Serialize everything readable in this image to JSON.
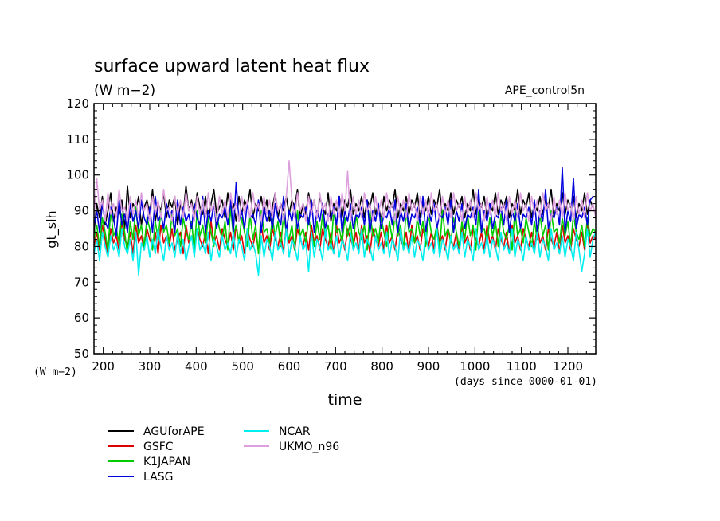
{
  "chart_data": {
    "type": "line",
    "title": "surface upward latent heat flux",
    "subtitle": "(W m−2)",
    "experiment": "APE_control5n",
    "xlabel": "time",
    "ylabel": "gt_slh",
    "y_unit_label": "(W m−2)",
    "x_unit_label": "(days since 0000-01-01)",
    "xlim": [
      180,
      1260
    ],
    "ylim": [
      50,
      120
    ],
    "x_ticks": [
      200,
      300,
      400,
      500,
      600,
      700,
      800,
      900,
      1000,
      1100,
      1200
    ],
    "y_ticks": [
      50,
      60,
      70,
      80,
      90,
      100,
      110,
      120
    ],
    "x_tick_labels": [
      "200",
      "300",
      "400",
      "500",
      "600",
      "700",
      "800",
      "900",
      "1000",
      "1100",
      "1200"
    ],
    "y_tick_labels": [
      "50",
      "60",
      "70",
      "80",
      "90",
      "100",
      "110",
      "120"
    ],
    "x_step_days": 6,
    "legend_position": "bottom-left",
    "series": [
      {
        "name": "AGUforAPE",
        "color": "#000000",
        "y": [
          84,
          92,
          88,
          94,
          86,
          90,
          95,
          87,
          91,
          89,
          93,
          85,
          97,
          88,
          92,
          90,
          94,
          86,
          91,
          93,
          89,
          96,
          87,
          92,
          90,
          95,
          88,
          93,
          91,
          94,
          86,
          92,
          89,
          97,
          90,
          93,
          88,
          95,
          91,
          89,
          94,
          87,
          92,
          96,
          89,
          91,
          93,
          88,
          95,
          90,
          92,
          87,
          94,
          89,
          93,
          91,
          96,
          88,
          92,
          90,
          94,
          89,
          93,
          87,
          91,
          95,
          88,
          92,
          90,
          94,
          89,
          93,
          91,
          96,
          88,
          92,
          89,
          95,
          90,
          93,
          88,
          94,
          91,
          89,
          95,
          87,
          92,
          90,
          94,
          88,
          93,
          91,
          96,
          89,
          92,
          90,
          94,
          88,
          93,
          91,
          95,
          89,
          92,
          87,
          94,
          90,
          93,
          91,
          96,
          88,
          92,
          90,
          94,
          89,
          93,
          91,
          95,
          88,
          92,
          90,
          94,
          89,
          93,
          91,
          96,
          88,
          92,
          90,
          95,
          89,
          93,
          91,
          94,
          88,
          92,
          90,
          96,
          89,
          93,
          91,
          94,
          88,
          92,
          90,
          95,
          89,
          93,
          91,
          94,
          88,
          92,
          90,
          96,
          89,
          93,
          91,
          95,
          88,
          92,
          90,
          94,
          89,
          93,
          91,
          96,
          88,
          92,
          90,
          95,
          89,
          93,
          91,
          94,
          88,
          92,
          90,
          95,
          89,
          93,
          91
        ]
      },
      {
        "name": "GSFC",
        "color": "#dd0000",
        "y": [
          80,
          84,
          79,
          86,
          82,
          78,
          85,
          81,
          83,
          79,
          87,
          82,
          80,
          84,
          78,
          86,
          81,
          83,
          79,
          85,
          82,
          80,
          84,
          78,
          86,
          81,
          83,
          80,
          85,
          79,
          82,
          84,
          78,
          86,
          81,
          83,
          79,
          85,
          82,
          80,
          84,
          78,
          87,
          81,
          83,
          79,
          85,
          82,
          80,
          84,
          79,
          86,
          81,
          83,
          78,
          85,
          82,
          80,
          84,
          79,
          86,
          81,
          83,
          79,
          85,
          82,
          80,
          84,
          78,
          86,
          81,
          83,
          79,
          85,
          82,
          80,
          84,
          79,
          86,
          81,
          83,
          79,
          85,
          82,
          80,
          84,
          78,
          86,
          81,
          83,
          79,
          85,
          82,
          80,
          84,
          79,
          86,
          81,
          83,
          78,
          85,
          82,
          80,
          84,
          79,
          86,
          81,
          83,
          79,
          85,
          82,
          80,
          84,
          78,
          86,
          81,
          83,
          79,
          85,
          82,
          80,
          84,
          79,
          86,
          81,
          83,
          79,
          85,
          82,
          80,
          84,
          78,
          86,
          81,
          83,
          79,
          85,
          82,
          80,
          84,
          79,
          86,
          81,
          83,
          79,
          85,
          82,
          80,
          84,
          78,
          86,
          81,
          83,
          79,
          85,
          82,
          80,
          84,
          79,
          86,
          81,
          83,
          79,
          85,
          82,
          80,
          84,
          78,
          86,
          81,
          83,
          79,
          85,
          82,
          80,
          84,
          79,
          86,
          81,
          83,
          82
        ]
      },
      {
        "name": "K1JAPAN",
        "color": "#00cc00",
        "y": [
          82,
          86,
          80,
          88,
          84,
          79,
          90,
          83,
          85,
          81,
          89,
          84,
          78,
          87,
          82,
          91,
          83,
          86,
          80,
          88,
          85,
          79,
          87,
          82,
          90,
          84,
          86,
          81,
          89,
          83,
          85,
          80,
          88,
          84,
          82,
          87,
          79,
          90,
          83,
          86,
          81,
          88,
          84,
          80,
          89,
          85,
          82,
          87,
          79,
          91,
          83,
          86,
          81,
          88,
          84,
          80,
          89,
          82,
          86,
          78,
          90,
          84,
          85,
          81,
          88,
          83,
          87,
          80,
          89,
          84,
          82,
          86,
          79,
          90,
          83,
          85,
          81,
          88,
          84,
          80,
          87,
          82,
          89,
          83,
          86,
          79,
          90,
          84,
          85,
          81,
          88,
          83,
          87,
          80,
          89,
          84,
          82,
          86,
          79,
          90,
          83,
          85,
          81,
          88,
          84,
          80,
          87,
          82,
          89,
          83,
          86,
          79,
          90,
          84,
          85,
          81,
          88,
          83,
          87,
          80,
          89,
          84,
          82,
          86,
          79,
          90,
          83,
          85,
          81,
          88,
          84,
          80,
          87,
          82,
          89,
          83,
          86,
          79,
          90,
          84,
          85,
          81,
          88,
          83,
          87,
          80,
          89,
          84,
          82,
          86,
          79,
          90,
          83,
          85,
          81,
          88,
          84,
          80,
          87,
          82,
          89,
          83,
          86,
          79,
          90,
          84,
          85,
          81,
          88,
          83,
          87,
          80,
          89,
          84,
          82,
          86,
          80,
          88,
          83,
          85,
          84
        ]
      },
      {
        "name": "LASG",
        "color": "#0000dd",
        "y": [
          86,
          90,
          84,
          92,
          87,
          85,
          91,
          88,
          83,
          93,
          86,
          89,
          84,
          92,
          87,
          90,
          85,
          93,
          88,
          86,
          91,
          84,
          94,
          87,
          89,
          85,
          92,
          88,
          90,
          84,
          93,
          86,
          91,
          87,
          89,
          85,
          92,
          88,
          86,
          94,
          84,
          90,
          87,
          92,
          85,
          89,
          88,
          91,
          86,
          93,
          84,
          98,
          87,
          90,
          85,
          92,
          88,
          89,
          86,
          93,
          84,
          91,
          87,
          90,
          85,
          92,
          88,
          86,
          94,
          84,
          90,
          87,
          92,
          85,
          89,
          88,
          91,
          86,
          93,
          84,
          90,
          87,
          92,
          85,
          89,
          88,
          91,
          86,
          94,
          84,
          90,
          87,
          92,
          85,
          89,
          88,
          91,
          86,
          93,
          84,
          90,
          87,
          92,
          85,
          89,
          88,
          91,
          86,
          93,
          84,
          90,
          87,
          92,
          85,
          89,
          88,
          91,
          86,
          94,
          84,
          90,
          87,
          92,
          85,
          89,
          88,
          91,
          86,
          93,
          84,
          90,
          87,
          92,
          85,
          89,
          88,
          91,
          86,
          96,
          84,
          90,
          87,
          92,
          85,
          89,
          88,
          91,
          86,
          93,
          84,
          90,
          87,
          92,
          85,
          89,
          88,
          91,
          86,
          93,
          84,
          90,
          87,
          96,
          85,
          89,
          88,
          91,
          86,
          102,
          84,
          90,
          87,
          99,
          85,
          89,
          88,
          91,
          86,
          93,
          94
        ]
      },
      {
        "name": "NCAR",
        "color": "#00eeee",
        "y": [
          78,
          82,
          76,
          84,
          80,
          77,
          83,
          79,
          81,
          77,
          85,
          80,
          78,
          82,
          76,
          84,
          72,
          81,
          79,
          83,
          77,
          82,
          78,
          85,
          80,
          76,
          83,
          79,
          81,
          77,
          84,
          78,
          82,
          76,
          80,
          83,
          77,
          85,
          79,
          81,
          78,
          84,
          76,
          82,
          80,
          77,
          83,
          79,
          81,
          78,
          84,
          77,
          82,
          80,
          76,
          85,
          79,
          81,
          78,
          72,
          83,
          77,
          82,
          80,
          76,
          84,
          79,
          81,
          78,
          85,
          77,
          82,
          80,
          76,
          83,
          79,
          81,
          73,
          84,
          77,
          82,
          80,
          76,
          85,
          79,
          81,
          78,
          83,
          77,
          82,
          80,
          76,
          84,
          79,
          81,
          78,
          85,
          77,
          82,
          80,
          76,
          83,
          79,
          81,
          78,
          84,
          77,
          82,
          80,
          76,
          85,
          79,
          81,
          78,
          83,
          77,
          82,
          80,
          76,
          84,
          79,
          81,
          78,
          85,
          77,
          82,
          80,
          76,
          83,
          79,
          81,
          78,
          84,
          77,
          82,
          80,
          76,
          85,
          79,
          81,
          78,
          83,
          77,
          82,
          80,
          76,
          84,
          79,
          81,
          78,
          85,
          77,
          82,
          80,
          76,
          83,
          79,
          81,
          78,
          84,
          77,
          82,
          80,
          76,
          85,
          79,
          81,
          78,
          83,
          77,
          82,
          80,
          76,
          84,
          79,
          73,
          78,
          85,
          77,
          82,
          84
        ]
      },
      {
        "name": "UKMO_n96",
        "color": "#dda0dd",
        "y": [
          88,
          99,
          90,
          93,
          87,
          95,
          89,
          92,
          88,
          96,
          90,
          91,
          87,
          94,
          89,
          93,
          88,
          95,
          90,
          92,
          87,
          94,
          89,
          93,
          88,
          96,
          90,
          91,
          87,
          94,
          89,
          93,
          88,
          95,
          90,
          92,
          87,
          94,
          89,
          93,
          88,
          95,
          90,
          92,
          87,
          94,
          89,
          93,
          88,
          95,
          90,
          92,
          87,
          94,
          89,
          93,
          88,
          95,
          90,
          92,
          87,
          94,
          89,
          93,
          88,
          95,
          90,
          92,
          87,
          94,
          104,
          93,
          88,
          95,
          90,
          92,
          87,
          94,
          89,
          93,
          88,
          95,
          90,
          92,
          87,
          94,
          89,
          93,
          88,
          95,
          90,
          101,
          87,
          94,
          89,
          93,
          88,
          95,
          90,
          92,
          87,
          94,
          89,
          93,
          88,
          95,
          90,
          92,
          87,
          94,
          89,
          93,
          88,
          95,
          90,
          92,
          87,
          94,
          89,
          93,
          88,
          95,
          90,
          92,
          87,
          94,
          89,
          93,
          88,
          95,
          90,
          92,
          87,
          94,
          89,
          93,
          88,
          95,
          90,
          92,
          87,
          94,
          89,
          93,
          88,
          95,
          90,
          92,
          87,
          94,
          89,
          93,
          88,
          95,
          90,
          92,
          87,
          94,
          89,
          93,
          88,
          95,
          90,
          92,
          87,
          94,
          89,
          93,
          88,
          95,
          90,
          92,
          87,
          94,
          89,
          93,
          88,
          95,
          90,
          92,
          88
        ]
      }
    ]
  }
}
